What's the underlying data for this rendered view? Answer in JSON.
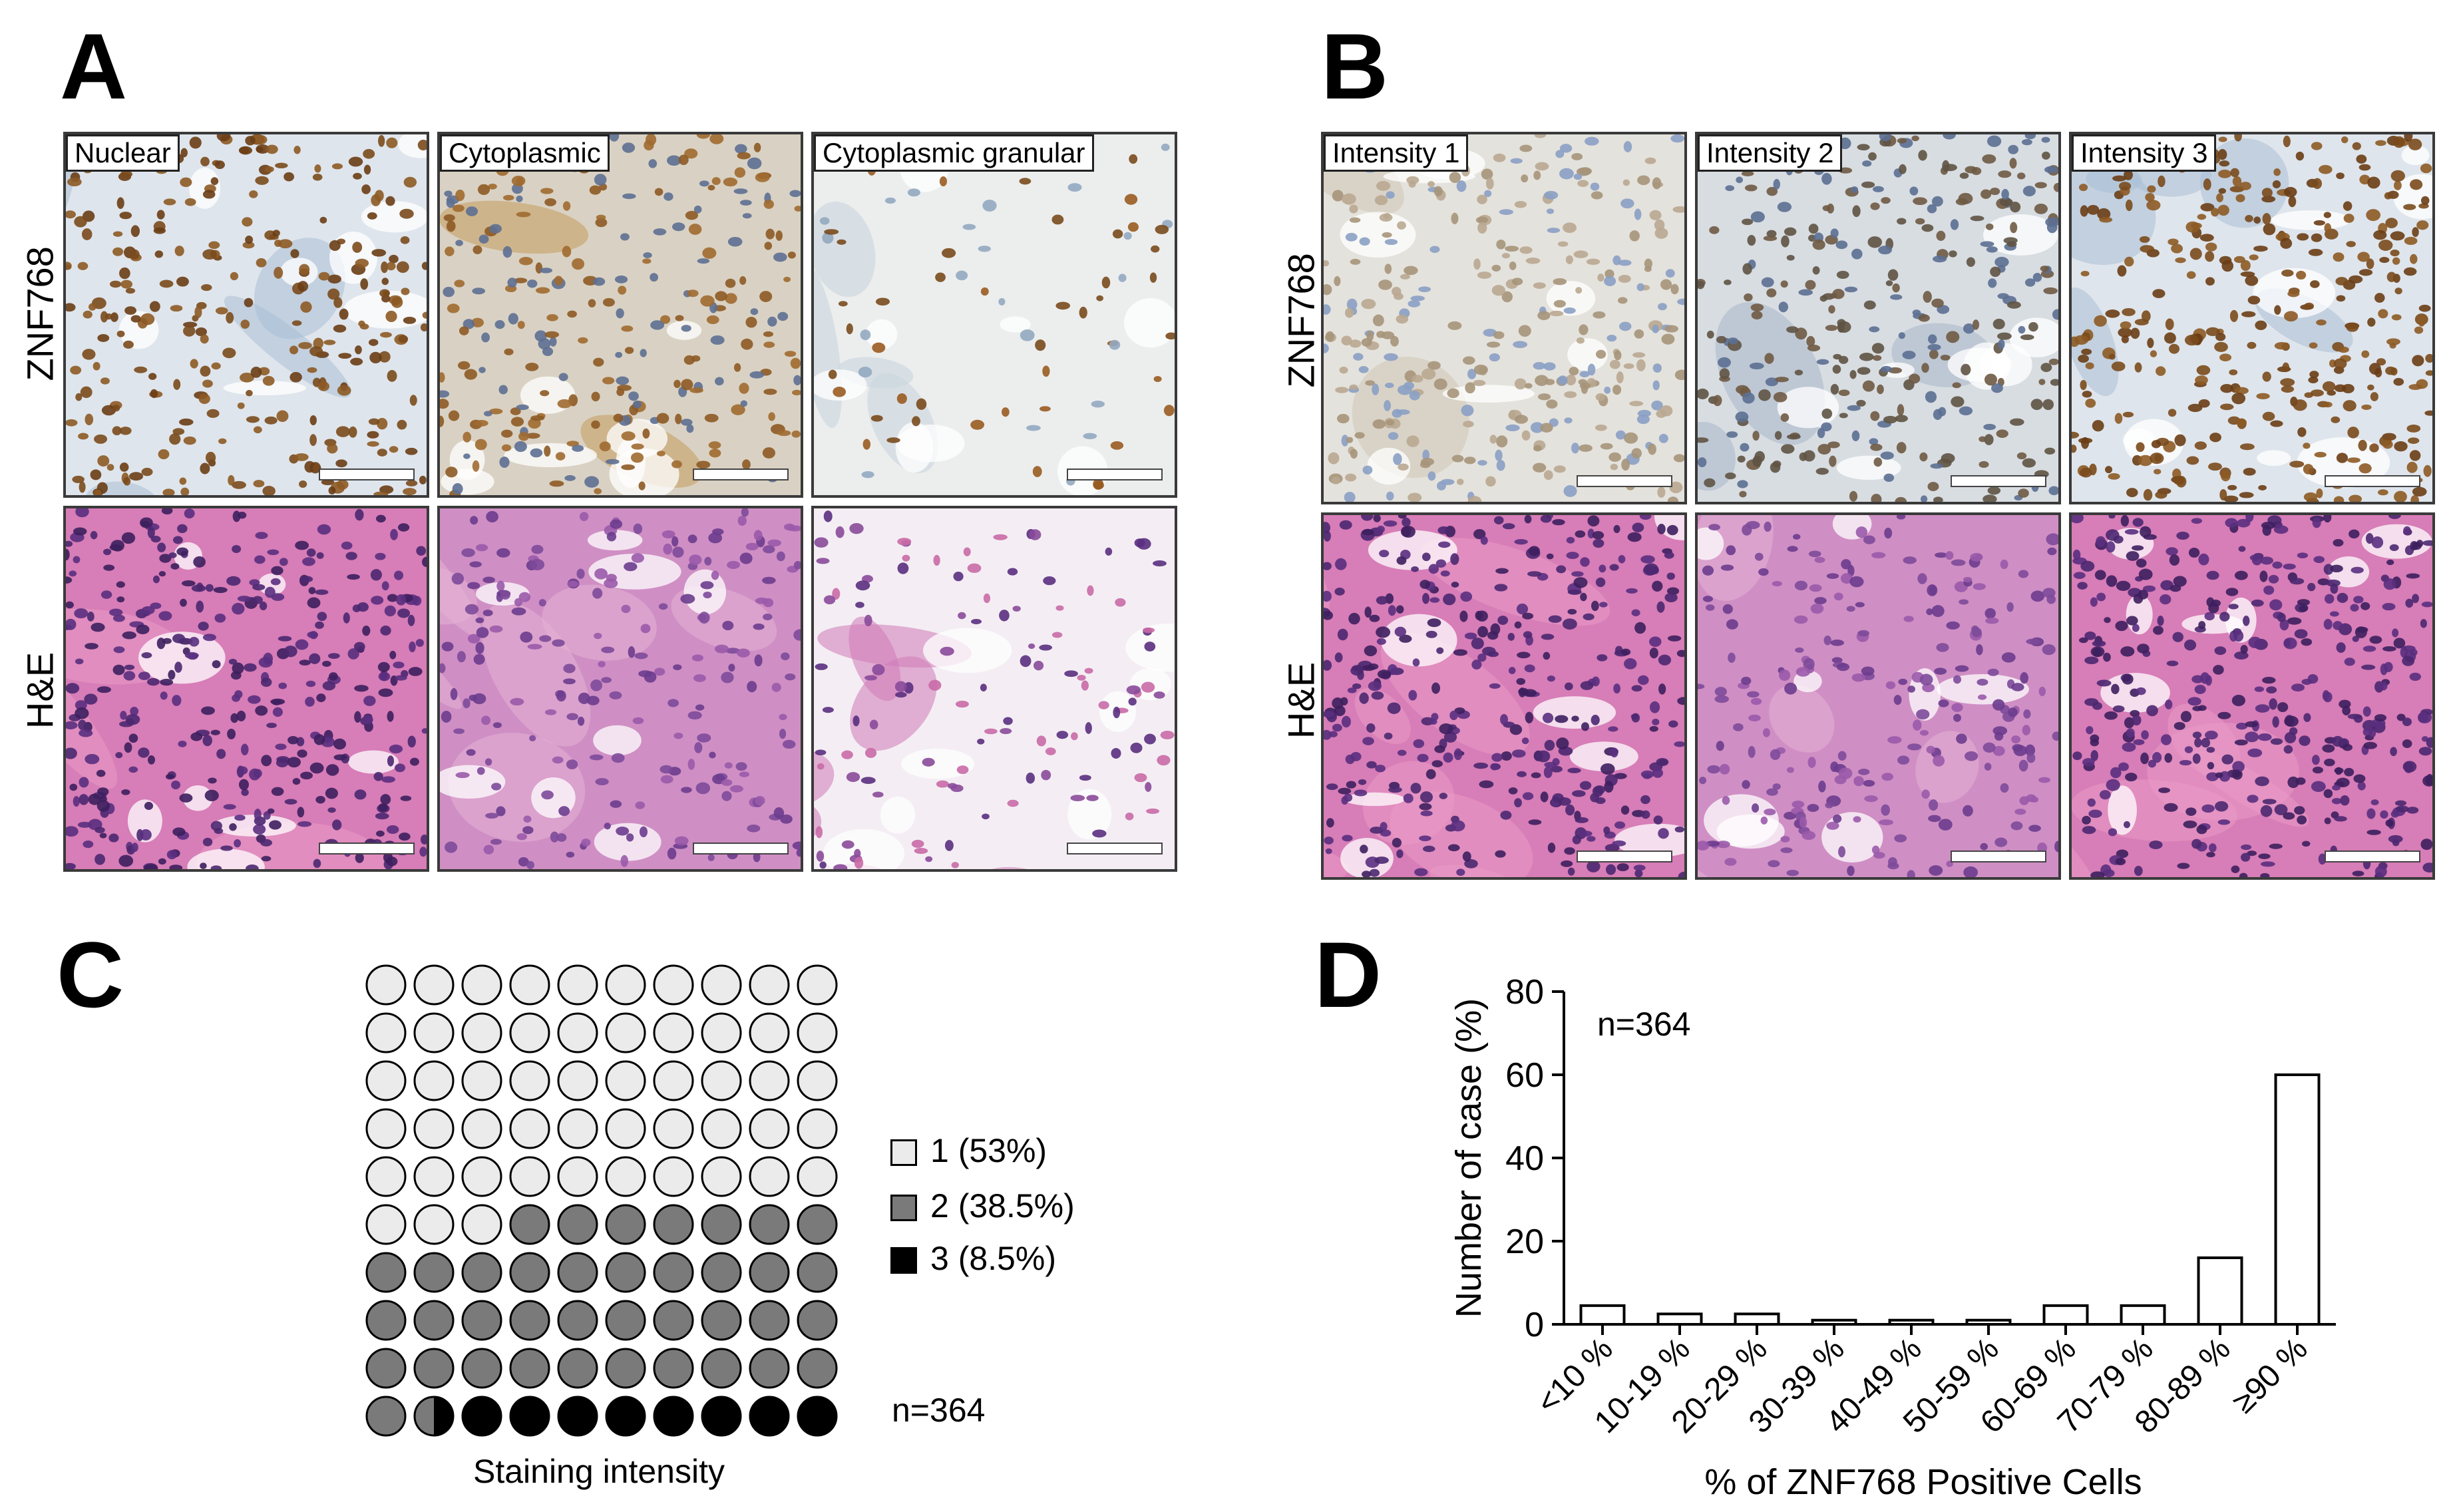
{
  "panels": {
    "A": {
      "letter": "A",
      "row_labels": [
        "ZNF768",
        "H&E"
      ],
      "col_labels": [
        "Nuclear",
        "Cytoplasmic",
        "Cytoplasmic granular"
      ]
    },
    "B": {
      "letter": "B",
      "row_labels": [
        "ZNF768",
        "H&E"
      ],
      "col_labels": [
        "Intensity 1",
        "Intensity 2",
        "Intensity 3"
      ]
    },
    "C": {
      "letter": "C",
      "xlabel": "Staining intensity",
      "n_label": "n=364",
      "legend": [
        {
          "label": "1 (53%)",
          "color": "#ebebeb"
        },
        {
          "label": "2 (38.5%)",
          "color": "#7a7a7a"
        },
        {
          "label": "3 (8.5%)",
          "color": "#000000"
        }
      ]
    },
    "D": {
      "letter": "D",
      "n_label": "n=364"
    }
  },
  "colors": {
    "ihc_bg": "#d7dfe8",
    "ihc_nuclei": "#7a4a1c",
    "he_bg": "#d86fb0",
    "he_nuclei": "#4b2870"
  },
  "chart_data": [
    {
      "type": "waffle",
      "grid": [
        10,
        10
      ],
      "categories": [
        "1",
        "2",
        "3"
      ],
      "values": [
        53,
        38.5,
        8.5
      ],
      "xlabel": "Staining intensity"
    },
    {
      "type": "bar",
      "categories": [
        "<10 %",
        "10-19 %",
        "20-29 %",
        "30-39 %",
        "40-49 %",
        "50-59 %",
        "60-69 %",
        "70-79 %",
        "80-89 %",
        "≥90 %"
      ],
      "values": [
        4.5,
        2.5,
        2.5,
        1,
        1,
        1,
        4.5,
        4.5,
        16,
        60
      ],
      "xlabel": "% of ZNF768 Positive Cells",
      "ylabel": "Number of case (%)",
      "ylim": [
        0,
        80
      ],
      "yticks": [
        "0",
        "20",
        "40",
        "60",
        "80"
      ]
    }
  ]
}
